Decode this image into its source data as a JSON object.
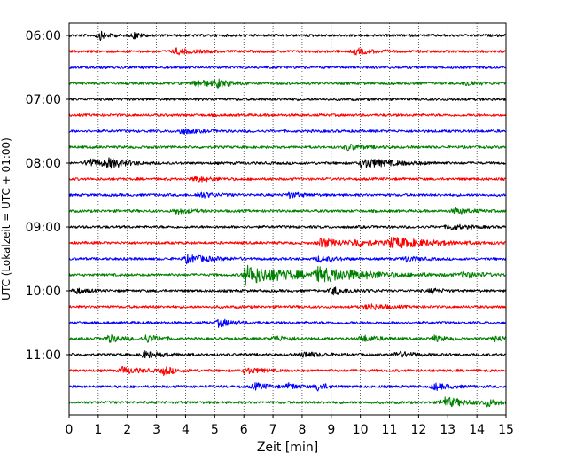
{
  "chart_data": {
    "type": "line",
    "title": "",
    "xlabel": "Zeit  [min]",
    "ylabel": "UTC (Lokalzeit = UTC + 01:00)",
    "xlim": [
      0,
      15
    ],
    "x_ticks": [
      0,
      1,
      2,
      3,
      4,
      5,
      6,
      7,
      8,
      9,
      10,
      11,
      12,
      13,
      14,
      15
    ],
    "x_tick_labels": [
      "0",
      "1",
      "2",
      "3",
      "4",
      "5",
      "6",
      "7",
      "8",
      "9",
      "10",
      "11",
      "12",
      "13",
      "14",
      "15"
    ],
    "y_tick_labels": [
      "06:00",
      "07:00",
      "08:00",
      "09:00",
      "10:00",
      "11:00"
    ],
    "x_grid": true,
    "x_grid_style": "dotted",
    "trace_colors": [
      "#000000",
      "#ff0000",
      "#0000ff",
      "#008000"
    ],
    "traces": [
      {
        "start": "06:00",
        "events": [
          {
            "t": 1.0,
            "amp": 0.5,
            "dur": 0.25
          },
          {
            "t": 2.2,
            "amp": 0.4,
            "dur": 0.2
          }
        ]
      },
      {
        "start": "06:15",
        "events": [
          {
            "t": 3.6,
            "amp": 0.3,
            "dur": 0.6
          },
          {
            "t": 9.8,
            "amp": 0.3,
            "dur": 0.5
          }
        ]
      },
      {
        "start": "06:30",
        "events": []
      },
      {
        "start": "06:45",
        "events": [
          {
            "t": 4.3,
            "amp": 0.45,
            "dur": 0.5
          },
          {
            "t": 5.0,
            "amp": 0.35,
            "dur": 0.5
          },
          {
            "t": 13.6,
            "amp": 0.3,
            "dur": 0.4
          }
        ]
      },
      {
        "start": "07:00",
        "events": []
      },
      {
        "start": "07:15",
        "events": []
      },
      {
        "start": "07:30",
        "events": [
          {
            "t": 3.8,
            "amp": 0.3,
            "dur": 0.5
          }
        ]
      },
      {
        "start": "07:45",
        "events": [
          {
            "t": 9.5,
            "amp": 0.3,
            "dur": 0.6
          }
        ]
      },
      {
        "start": "08:00",
        "events": [
          {
            "t": 0.6,
            "amp": 0.45,
            "dur": 0.6
          },
          {
            "t": 1.3,
            "amp": 0.4,
            "dur": 0.6
          },
          {
            "t": 10.0,
            "amp": 0.5,
            "dur": 1.0
          }
        ]
      },
      {
        "start": "08:15",
        "events": [
          {
            "t": 4.3,
            "amp": 0.3,
            "dur": 0.5
          }
        ]
      },
      {
        "start": "08:30",
        "events": [
          {
            "t": 4.4,
            "amp": 0.3,
            "dur": 0.5
          },
          {
            "t": 7.5,
            "amp": 0.3,
            "dur": 0.4
          }
        ]
      },
      {
        "start": "08:45",
        "events": [
          {
            "t": 3.6,
            "amp": 0.3,
            "dur": 0.5
          },
          {
            "t": 13.2,
            "amp": 0.3,
            "dur": 0.5
          }
        ]
      },
      {
        "start": "09:00",
        "events": [
          {
            "t": 13.0,
            "amp": 0.3,
            "dur": 0.5
          }
        ]
      },
      {
        "start": "09:15",
        "events": [
          {
            "t": 8.6,
            "amp": 0.45,
            "dur": 0.8
          },
          {
            "t": 11.0,
            "amp": 0.55,
            "dur": 1.3
          },
          {
            "t": 9.8,
            "amp": 0.35,
            "dur": 0.5
          }
        ]
      },
      {
        "start": "09:30",
        "events": [
          {
            "t": 4.0,
            "amp": 0.4,
            "dur": 0.8
          },
          {
            "t": 8.5,
            "amp": 0.3,
            "dur": 0.5
          },
          {
            "t": 11.5,
            "amp": 0.3,
            "dur": 0.4
          }
        ]
      },
      {
        "start": "09:45",
        "events": [
          {
            "t": 6.0,
            "amp": 1.0,
            "dur": 1.6
          },
          {
            "t": 8.5,
            "amp": 0.55,
            "dur": 2.0
          },
          {
            "t": 13.5,
            "amp": 0.3,
            "dur": 0.5
          }
        ]
      },
      {
        "start": "10:00",
        "events": [
          {
            "t": 0.2,
            "amp": 0.35,
            "dur": 0.3
          },
          {
            "t": 9.0,
            "amp": 0.4,
            "dur": 0.6
          },
          {
            "t": 12.4,
            "amp": 0.3,
            "dur": 0.3
          }
        ]
      },
      {
        "start": "10:15",
        "events": [
          {
            "t": 10.2,
            "amp": 0.35,
            "dur": 0.5
          }
        ]
      },
      {
        "start": "10:30",
        "events": [
          {
            "t": 5.1,
            "amp": 0.4,
            "dur": 0.5
          }
        ]
      },
      {
        "start": "10:45",
        "events": [
          {
            "t": 1.3,
            "amp": 0.4,
            "dur": 0.5
          },
          {
            "t": 2.6,
            "amp": 0.35,
            "dur": 0.5
          },
          {
            "t": 7.0,
            "amp": 0.3,
            "dur": 0.5
          },
          {
            "t": 10.0,
            "amp": 0.35,
            "dur": 0.5
          },
          {
            "t": 12.5,
            "amp": 0.3,
            "dur": 0.4
          },
          {
            "t": 14.6,
            "amp": 0.3,
            "dur": 0.4
          }
        ]
      },
      {
        "start": "11:00",
        "events": [
          {
            "t": 2.5,
            "amp": 0.35,
            "dur": 0.6
          },
          {
            "t": 8.0,
            "amp": 0.3,
            "dur": 0.5
          },
          {
            "t": 11.2,
            "amp": 0.35,
            "dur": 0.5
          }
        ]
      },
      {
        "start": "11:15",
        "events": [
          {
            "t": 1.8,
            "amp": 0.35,
            "dur": 0.6
          },
          {
            "t": 3.2,
            "amp": 0.4,
            "dur": 0.4
          },
          {
            "t": 6.0,
            "amp": 0.35,
            "dur": 0.5
          }
        ]
      },
      {
        "start": "11:30",
        "events": [
          {
            "t": 6.3,
            "amp": 0.35,
            "dur": 0.5
          },
          {
            "t": 7.5,
            "amp": 0.3,
            "dur": 0.4
          },
          {
            "t": 8.5,
            "amp": 0.45,
            "dur": 0.3
          },
          {
            "t": 12.5,
            "amp": 0.35,
            "dur": 0.5
          }
        ]
      },
      {
        "start": "11:45",
        "events": [
          {
            "t": 12.8,
            "amp": 0.55,
            "dur": 0.7
          },
          {
            "t": 14.3,
            "amp": 0.35,
            "dur": 0.4
          }
        ]
      }
    ]
  }
}
